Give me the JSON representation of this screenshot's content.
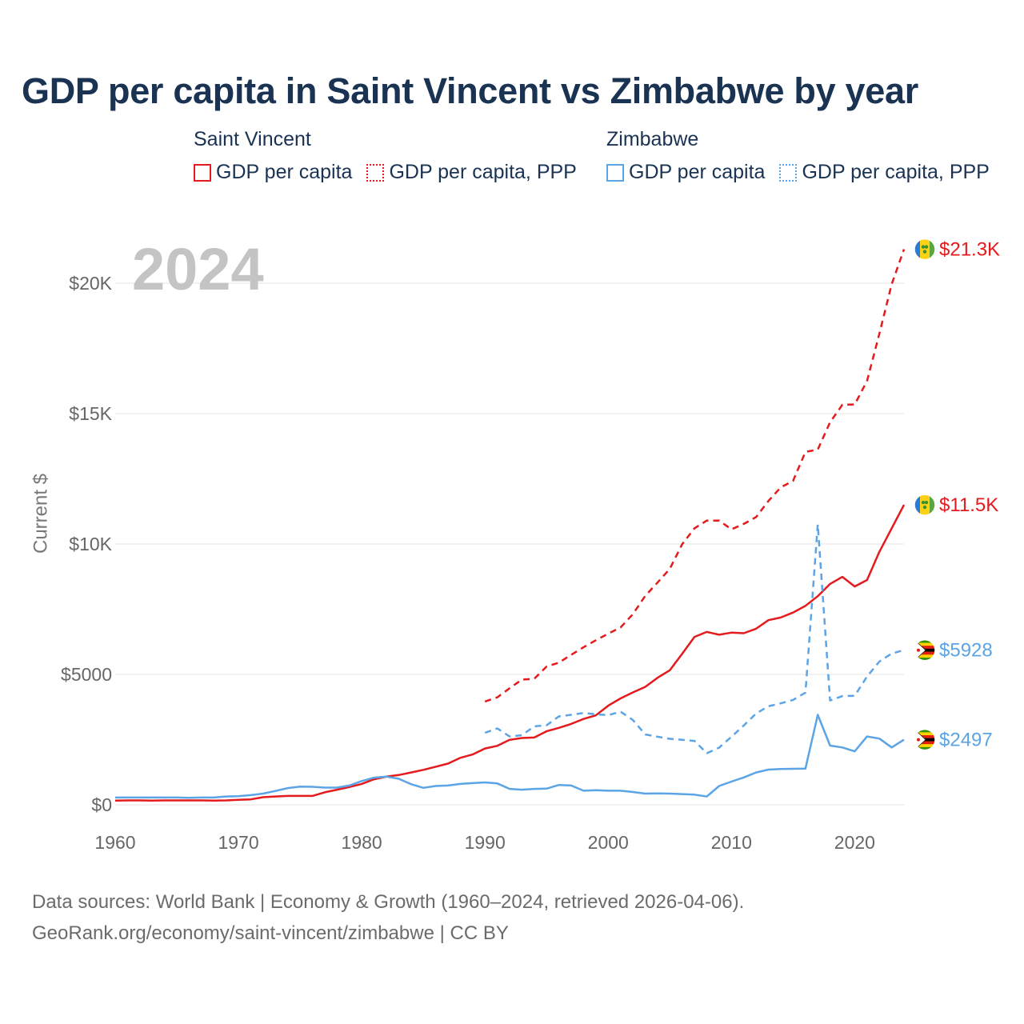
{
  "title": "GDP per capita in Saint Vincent vs Zimbabwe by year",
  "legend": {
    "groups": [
      {
        "name": "Saint Vincent",
        "items": [
          "GDP per capita",
          "GDP per capita, PPP"
        ]
      },
      {
        "name": "Zimbabwe",
        "items": [
          "GDP per capita",
          "GDP per capita, PPP"
        ]
      }
    ]
  },
  "year_label": "2024",
  "sources": {
    "line1": "Data sources: World Bank | Economy & Growth (1960–2024, retrieved 2026-04-06).",
    "line2": "GeoRank.org/economy/saint-vincent/zimbabwe | CC BY"
  },
  "colors": {
    "saint_vincent": "#e41a1c",
    "zimbabwe": "#5ba4e5",
    "title": "#1a3353"
  },
  "chart_data": {
    "type": "line",
    "title": "GDP per capita in Saint Vincent vs Zimbabwe by year",
    "xlabel": "",
    "ylabel": "Current $",
    "xlim": [
      1960,
      2024
    ],
    "ylim": [
      0,
      22000
    ],
    "x_ticks": [
      1960,
      1970,
      1980,
      1990,
      2000,
      2010,
      2020
    ],
    "x_tick_labels": [
      "1960",
      "1970",
      "1980",
      "1990",
      "2000",
      "2010",
      "2020"
    ],
    "y_ticks": [
      0,
      5000,
      10000,
      15000,
      20000
    ],
    "y_tick_labels": [
      "$0",
      "$5000",
      "$10K",
      "$15K",
      "$20K"
    ],
    "grid": true,
    "end_labels": [
      "$21.3K",
      "$11.5K",
      "$5928",
      "$2497"
    ],
    "series": [
      {
        "name": "Saint Vincent — GDP per capita",
        "style": "solid",
        "color": "#e41a1c",
        "x": [
          1960,
          1961,
          1962,
          1963,
          1964,
          1965,
          1966,
          1967,
          1968,
          1969,
          1970,
          1971,
          1972,
          1973,
          1974,
          1975,
          1976,
          1977,
          1978,
          1979,
          1980,
          1981,
          1982,
          1983,
          1984,
          1985,
          1986,
          1987,
          1988,
          1989,
          1990,
          1991,
          1992,
          1993,
          1994,
          1995,
          1996,
          1997,
          1998,
          1999,
          2000,
          2001,
          2002,
          2003,
          2004,
          2005,
          2006,
          2007,
          2008,
          2009,
          2010,
          2011,
          2012,
          2013,
          2014,
          2015,
          2016,
          2017,
          2018,
          2019,
          2020,
          2021,
          2022,
          2023,
          2024
        ],
        "values": [
          160,
          170,
          170,
          160,
          170,
          170,
          170,
          170,
          160,
          170,
          190,
          210,
          290,
          320,
          340,
          340,
          340,
          480,
          580,
          680,
          800,
          980,
          1080,
          1140,
          1240,
          1340,
          1460,
          1580,
          1800,
          1930,
          2160,
          2260,
          2490,
          2560,
          2580,
          2820,
          2950,
          3100,
          3290,
          3430,
          3800,
          4080,
          4310,
          4520,
          4870,
          5160,
          5790,
          6440,
          6630,
          6520,
          6600,
          6580,
          6750,
          7080,
          7180,
          7370,
          7630,
          8000,
          8470,
          8740,
          8370,
          8620,
          9700,
          10600,
          11500
        ]
      },
      {
        "name": "Saint Vincent — GDP per capita, PPP",
        "style": "dashed",
        "color": "#e41a1c",
        "x": [
          1990,
          1991,
          1992,
          1993,
          1994,
          1995,
          1996,
          1997,
          1998,
          1999,
          2000,
          2001,
          2002,
          2003,
          2004,
          2005,
          2006,
          2007,
          2008,
          2009,
          2010,
          2011,
          2012,
          2013,
          2014,
          2015,
          2016,
          2017,
          2018,
          2019,
          2020,
          2021,
          2022,
          2023,
          2024
        ],
        "values": [
          3960,
          4120,
          4470,
          4800,
          4830,
          5300,
          5450,
          5750,
          6040,
          6310,
          6560,
          6800,
          7310,
          8010,
          8520,
          9050,
          9990,
          10600,
          10900,
          10900,
          10560,
          10770,
          11030,
          11650,
          12170,
          12420,
          13530,
          13620,
          14670,
          15340,
          15350,
          16250,
          18060,
          19960,
          21300
        ]
      },
      {
        "name": "Zimbabwe — GDP per capita",
        "style": "solid",
        "color": "#5ba4e5",
        "x": [
          1960,
          1961,
          1962,
          1963,
          1964,
          1965,
          1966,
          1967,
          1968,
          1969,
          1970,
          1971,
          1972,
          1973,
          1974,
          1975,
          1976,
          1977,
          1978,
          1979,
          1980,
          1981,
          1982,
          1983,
          1984,
          1985,
          1986,
          1987,
          1988,
          1989,
          1990,
          1991,
          1992,
          1993,
          1994,
          1995,
          1996,
          1997,
          1998,
          1999,
          2000,
          2001,
          2002,
          2003,
          2004,
          2005,
          2006,
          2007,
          2008,
          2009,
          2010,
          2011,
          2012,
          2013,
          2014,
          2015,
          2016,
          2017,
          2018,
          2019,
          2020,
          2021,
          2022,
          2023,
          2024
        ],
        "values": [
          280,
          280,
          280,
          280,
          280,
          280,
          270,
          280,
          280,
          320,
          330,
          370,
          430,
          530,
          640,
          700,
          690,
          660,
          660,
          740,
          910,
          1040,
          1080,
          1000,
          790,
          650,
          720,
          740,
          800,
          830,
          860,
          820,
          610,
          580,
          610,
          620,
          760,
          740,
          540,
          560,
          540,
          540,
          490,
          430,
          440,
          430,
          410,
          390,
          320,
          720,
          890,
          1050,
          1240,
          1350,
          1370,
          1380,
          1390,
          3450,
          2270,
          2200,
          2050,
          2620,
          2540,
          2200,
          2497
        ]
      },
      {
        "name": "Zimbabwe — GDP per capita, PPP",
        "style": "dashed",
        "color": "#5ba4e5",
        "x": [
          1990,
          1991,
          1992,
          1993,
          1994,
          1995,
          1996,
          1997,
          1998,
          1999,
          2000,
          2001,
          2002,
          2003,
          2004,
          2005,
          2006,
          2007,
          2008,
          2009,
          2010,
          2011,
          2012,
          2013,
          2014,
          2015,
          2016,
          2017,
          2018,
          2019,
          2020,
          2021,
          2022,
          2023,
          2024
        ],
        "values": [
          2760,
          2930,
          2620,
          2670,
          3010,
          3050,
          3390,
          3450,
          3520,
          3470,
          3440,
          3570,
          3250,
          2700,
          2610,
          2530,
          2490,
          2450,
          1980,
          2190,
          2610,
          3040,
          3500,
          3780,
          3890,
          4020,
          4300,
          10750,
          4000,
          4170,
          4180,
          4920,
          5490,
          5800,
          5928
        ]
      }
    ]
  }
}
